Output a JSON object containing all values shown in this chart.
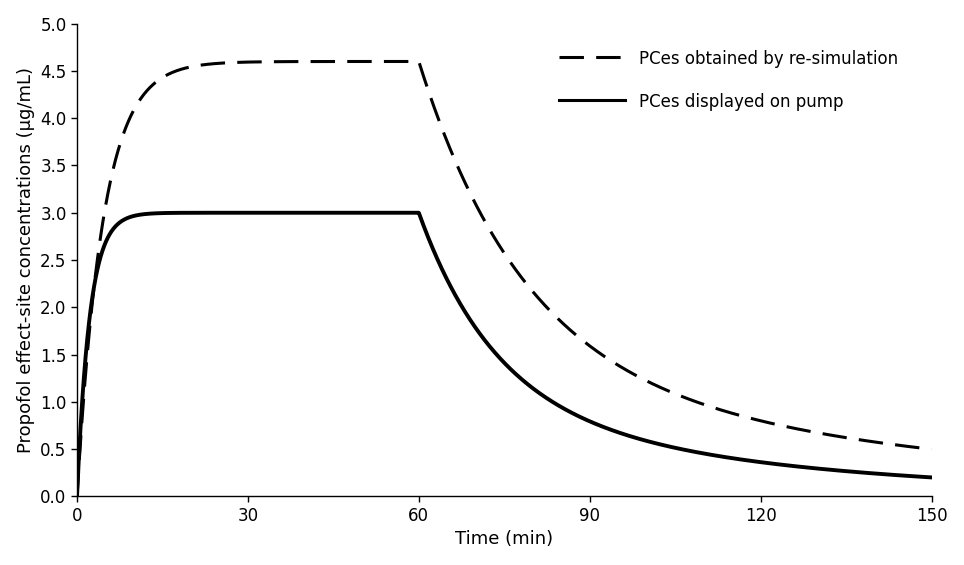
{
  "title": "",
  "xlabel": "Time (min)",
  "ylabel": "Propofol effect-site concentrations (μg/mL)",
  "xlim": [
    0,
    150
  ],
  "ylim": [
    0.0,
    5.0
  ],
  "xticks": [
    0,
    30,
    60,
    90,
    120,
    150
  ],
  "yticks": [
    0.0,
    0.5,
    1.0,
    1.5,
    2.0,
    2.5,
    3.0,
    3.5,
    4.0,
    4.5,
    5.0
  ],
  "legend_dashed": "PCes obtained by re-simulation",
  "legend_solid": "PCes displayed on pump",
  "background_color": "#ffffff",
  "line_color": "#000000",
  "linewidth_solid": 2.8,
  "linewidth_dashed": 2.2,
  "fontsize_label": 13,
  "fontsize_tick": 12,
  "fontsize_legend": 12,
  "pump_rise_rate": 0.45,
  "pump_plateau": 3.0,
  "pump_decay_fast": 0.065,
  "pump_decay_slow": 0.018,
  "pump_at_150": 0.27,
  "resim_rise_rate": 0.22,
  "resim_plateau": 4.6,
  "resim_decay_fast": 0.038,
  "resim_decay_slow": 0.012,
  "resim_at_150": 0.45
}
